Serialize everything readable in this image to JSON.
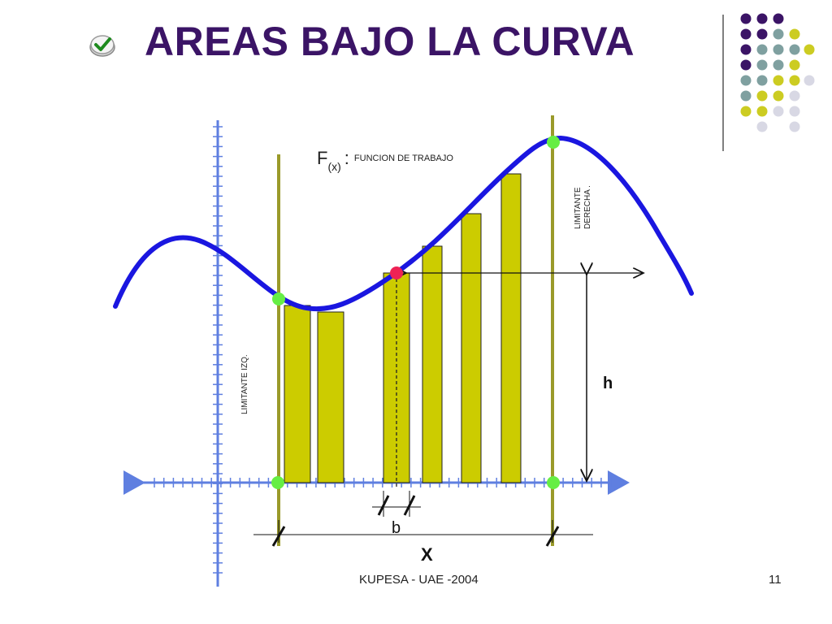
{
  "slide": {
    "title": "AREAS BAJO LA CURVA",
    "footer": "KUPESA - UAE -2004",
    "page_number": "11"
  },
  "diagram": {
    "function_label_main": "F",
    "function_label_sub": "(x)",
    "function_label_colon": ":",
    "function_label_desc": "FUNCION DE TRABAJO",
    "left_limit_label": "LIMITANTE IZQ.",
    "right_limit_label_line1": "LIMITANTE",
    "right_limit_label_line2": "DERECHA .",
    "height_label": "h",
    "base_label": "b",
    "interval_label": "X"
  },
  "colors": {
    "title": "#3b1466",
    "curve": "#1a16e0",
    "bars": "#cccc00",
    "axes": "#5f7fe0",
    "limit_lines": "#9a9a2a",
    "green_points": "#66ee44",
    "red_point": "#ee2255"
  },
  "icons": [
    "check-icon"
  ]
}
